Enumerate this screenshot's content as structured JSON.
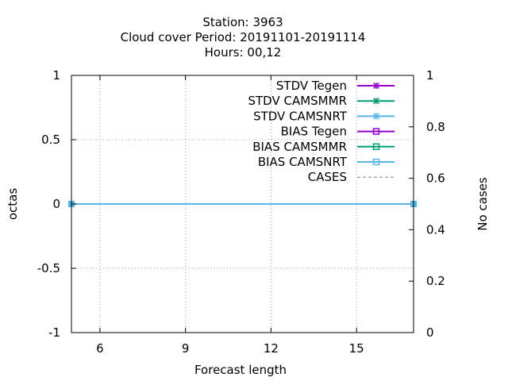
{
  "chart_data": {
    "type": "line",
    "title_lines": [
      "Station:     3963",
      "Cloud cover   Period: 20191101-20191114",
      "Hours:  00,12"
    ],
    "xlabel": "Forecast length",
    "ylabel": "octas",
    "y2label": "No cases",
    "xlim": [
      5,
      17
    ],
    "ylim": [
      -1,
      1
    ],
    "y2lim": [
      0,
      1
    ],
    "xticks": [
      6,
      9,
      12,
      15
    ],
    "yticks": [
      1,
      0.5,
      0,
      -0.5,
      -1
    ],
    "yticklabels": [
      "1",
      "0.5",
      "0",
      "-0.5",
      "-1"
    ],
    "y2ticks": [
      0,
      0.2,
      0.4,
      0.6,
      0.8,
      1
    ],
    "y2ticklabels": [
      "0",
      "0.2",
      "0.4",
      "0.6",
      "0.8",
      "1"
    ],
    "grid": true,
    "legend_position": "top-right",
    "series": [
      {
        "name": "STDV Tegen",
        "color": "#9400d3",
        "marker": "star",
        "dash": false,
        "x": [],
        "y": []
      },
      {
        "name": "STDV CAMSMMR",
        "color": "#009e73",
        "marker": "star",
        "dash": false,
        "x": [],
        "y": []
      },
      {
        "name": "STDV CAMSNRT",
        "color": "#56b4e9",
        "marker": "star",
        "dash": false,
        "x": [],
        "y": []
      },
      {
        "name": "BIAS Tegen",
        "color": "#9400d3",
        "marker": "square-open",
        "dash": false,
        "x": [],
        "y": []
      },
      {
        "name": "BIAS CAMSMMR",
        "color": "#009e73",
        "marker": "square-open",
        "dash": false,
        "x": [],
        "y": []
      },
      {
        "name": "BIAS CAMSNRT",
        "color": "#56b4e9",
        "marker": "square-open",
        "dash": false,
        "x": [
          5,
          17
        ],
        "y": [
          0,
          0
        ]
      },
      {
        "name": "CASES",
        "color": "#808080",
        "marker": "none",
        "dash": true,
        "axis": "y2",
        "x": [
          5,
          17
        ],
        "y": [
          1,
          1
        ]
      }
    ]
  }
}
